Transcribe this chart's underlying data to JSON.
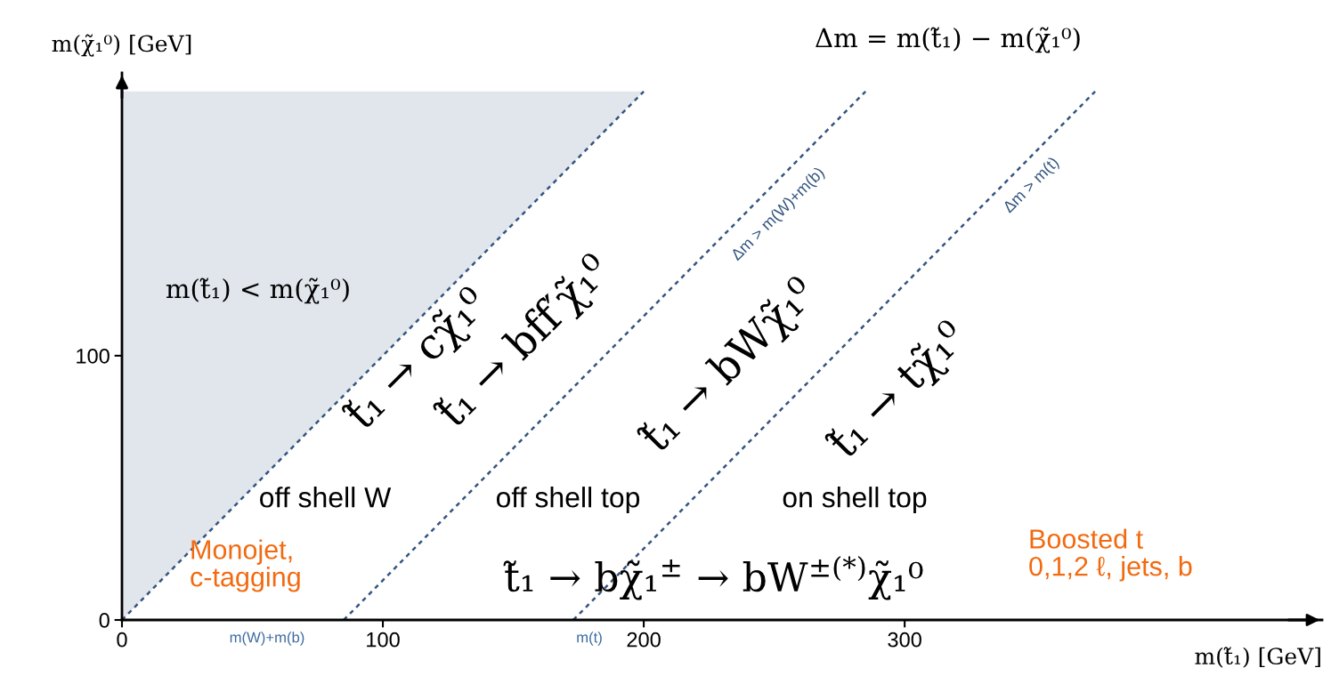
{
  "chart_data": {
    "type": "line",
    "xlabel": "m(t̃₁) [GeV]",
    "ylabel": "m(χ̃₁⁰) [GeV]",
    "xlim": [
      0,
      460
    ],
    "ylim": [
      0,
      207
    ],
    "xticks": [
      0,
      100,
      200,
      300
    ],
    "yticks": [
      0,
      100
    ],
    "grid": false,
    "marker": "none",
    "series": [
      {
        "x": [
          0,
          200
        ],
        "values": [
          0,
          200
        ],
        "lower": [
          0,
          200
        ],
        "upper": [
          200,
          200
        ],
        "color": "#34557f",
        "line_style": "dotted"
      },
      {
        "name": "Δm > m(W)+m(b)",
        "x": [
          85,
          285
        ],
        "values": [
          0,
          200
        ],
        "color": "#34557f",
        "line_style": "dotted"
      },
      {
        "name": "Δm > m(t)",
        "x": [
          173,
          373
        ],
        "values": [
          0,
          200
        ],
        "color": "#34557f",
        "line_style": "dotted"
      }
    ],
    "annotations": [
      "Δm = m(t̃₁) − m(χ̃₁⁰)",
      "m(t̃₁) < m(χ̃₁⁰)",
      "t̃₁ → cχ̃₁⁰",
      "t̃₁ → bff′χ̃₁⁰",
      "t̃₁ → bWχ̃₁⁰",
      "t̃₁ → tχ̃₁⁰",
      "off shell W",
      "off shell top",
      "on shell top",
      "t̃₁ → bχ̃₁$^{±}$ → bW$^{±(*)}$χ̃₁⁰",
      "Monojet,\nc-tagging",
      "Boosted t\n0,1,2 ℓ, jets, b",
      "m(W)+m(b)",
      "m(t)"
    ]
  }
}
